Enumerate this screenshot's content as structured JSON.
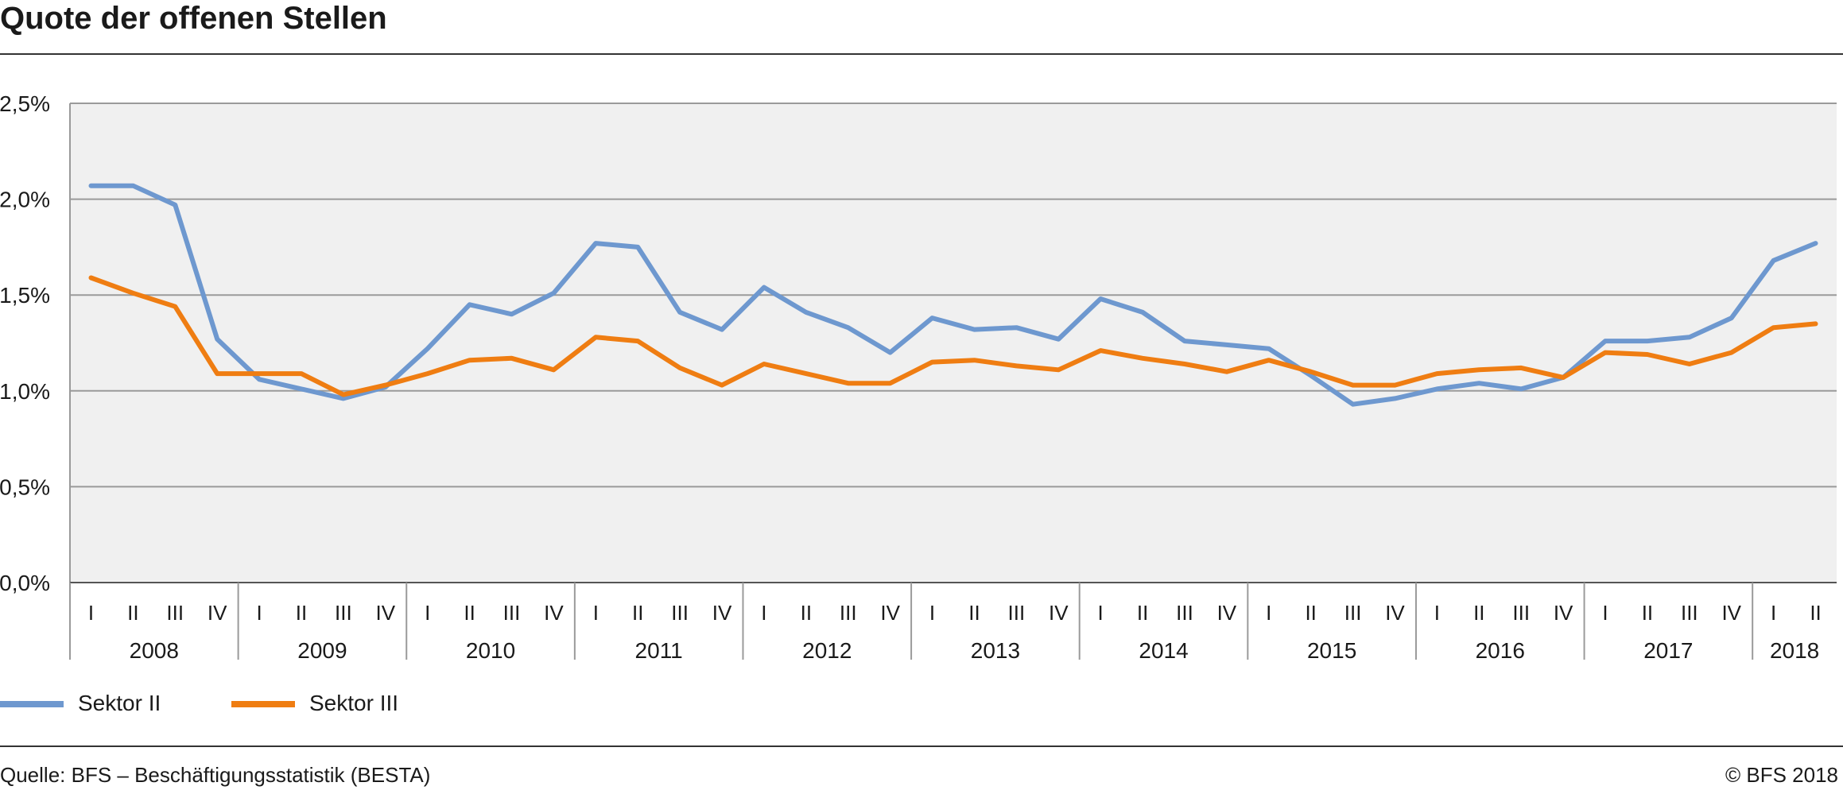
{
  "title": "Quote der offenen Stellen",
  "source": "Quelle: BFS – Beschäftigungsstatistik (BESTA)",
  "copyright": "© BFS 2018",
  "colors": {
    "plot_background": "#f0f0f0",
    "gridline": "#9a9a9a",
    "sektor_ii": "#6e98cf",
    "sektor_iii": "#ef7d12"
  },
  "chart_data": {
    "type": "line",
    "title": "Quote der offenen Stellen",
    "xlabel": "",
    "ylabel": "",
    "ylim": [
      0,
      2.5
    ],
    "y_ticks": [
      "0,0%",
      "0,5%",
      "1,0%",
      "1,5%",
      "2,0%",
      "2,5%"
    ],
    "y_tick_values": [
      0,
      0.5,
      1.0,
      1.5,
      2.0,
      2.5
    ],
    "grid": true,
    "legend_position": "bottom-left",
    "years": [
      "2008",
      "2009",
      "2010",
      "2011",
      "2012",
      "2013",
      "2014",
      "2015",
      "2016",
      "2017",
      "2018"
    ],
    "quarters_per_year": [
      4,
      4,
      4,
      4,
      4,
      4,
      4,
      4,
      4,
      4,
      2
    ],
    "quarter_labels": [
      "I",
      "II",
      "III",
      "IV"
    ],
    "series": [
      {
        "name": "Sektor II",
        "color": "#6e98cf",
        "values": [
          2.07,
          2.07,
          1.97,
          1.27,
          1.06,
          1.01,
          0.96,
          1.02,
          1.22,
          1.45,
          1.4,
          1.51,
          1.77,
          1.75,
          1.41,
          1.32,
          1.54,
          1.41,
          1.33,
          1.2,
          1.38,
          1.32,
          1.33,
          1.27,
          1.48,
          1.41,
          1.26,
          1.24,
          1.22,
          1.08,
          0.93,
          0.96,
          1.01,
          1.04,
          1.01,
          1.07,
          1.26,
          1.26,
          1.28,
          1.38,
          1.68,
          1.77
        ]
      },
      {
        "name": "Sektor III",
        "color": "#ef7d12",
        "values": [
          1.59,
          1.51,
          1.44,
          1.09,
          1.09,
          1.09,
          0.98,
          1.03,
          1.09,
          1.16,
          1.17,
          1.11,
          1.28,
          1.26,
          1.12,
          1.03,
          1.14,
          1.09,
          1.04,
          1.04,
          1.15,
          1.16,
          1.13,
          1.11,
          1.21,
          1.17,
          1.14,
          1.1,
          1.16,
          1.1,
          1.03,
          1.03,
          1.09,
          1.11,
          1.12,
          1.07,
          1.2,
          1.19,
          1.14,
          1.2,
          1.33,
          1.35
        ]
      }
    ]
  }
}
